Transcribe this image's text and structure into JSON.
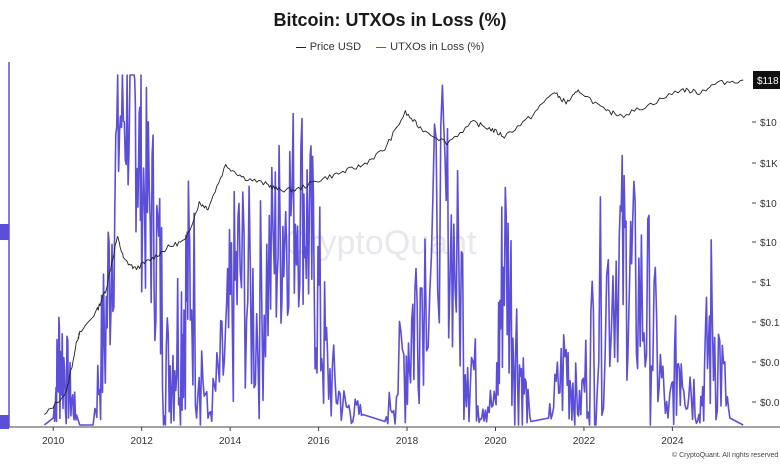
{
  "chart_data": {
    "type": "line",
    "title": "Bitcoin: UTXOs in Loss (%)",
    "legend": [
      "Price USD",
      "UTXOs in Loss (%)"
    ],
    "x_ticks": [
      "2010",
      "2012",
      "2014",
      "2016",
      "2018",
      "2020",
      "2022",
      "2024"
    ],
    "y_right_ticks": [
      "$118",
      "$10",
      "$1K",
      "$10",
      "$10",
      "$1",
      "$0.1",
      "$0.0",
      "$0.0"
    ],
    "y_scale": "log",
    "series": [
      {
        "name": "Price USD",
        "color": "#222222",
        "x": [
          2009.8,
          2010.3,
          2010.55,
          2010.6,
          2011.0,
          2011.2,
          2011.45,
          2011.6,
          2011.85,
          2012.2,
          2012.6,
          2013.0,
          2013.3,
          2013.5,
          2013.9,
          2014.3,
          2014.8,
          2015.1,
          2015.5,
          2016.0,
          2016.5,
          2017.0,
          2017.5,
          2017.96,
          2018.3,
          2018.9,
          2019.5,
          2019.9,
          2020.2,
          2020.8,
          2021.3,
          2021.6,
          2021.9,
          2022.5,
          2022.9,
          2023.5,
          2024.2,
          2024.6,
          2025.0,
          2025.6
        ],
        "values": [
          0.0008,
          0.003,
          0.06,
          0.08,
          0.3,
          1,
          18,
          5,
          3,
          5,
          10,
          15,
          120,
          90,
          1000,
          500,
          350,
          250,
          250,
          430,
          650,
          1000,
          2500,
          19000,
          8000,
          3500,
          11000,
          7500,
          5000,
          15000,
          60000,
          33000,
          65000,
          20000,
          16500,
          30000,
          70000,
          58000,
          98000,
          118000
        ]
      },
      {
        "name": "UTXOs in Loss (%)",
        "color": "#5b4fd9",
        "x": [
          2009.8,
          2010.0,
          2010.15,
          2010.4,
          2010.6,
          2010.9,
          2011.2,
          2011.5,
          2011.8,
          2012.0,
          2012.3,
          2012.6,
          2012.9,
          2013.1,
          2013.5,
          2013.9,
          2014.2,
          2014.6,
          2015.0,
          2015.3,
          2015.65,
          2015.9,
          2016.2,
          2016.6,
          2017.0,
          2017.5,
          2017.96,
          2018.3,
          2018.8,
          2019.2,
          2019.6,
          2020.0,
          2020.2,
          2020.5,
          2020.8,
          2021.2,
          2021.6,
          2021.9,
          2022.3,
          2022.8,
          2023.1,
          2023.5,
          2023.9,
          2024.2,
          2024.6,
          2024.9,
          2025.3,
          2025.6
        ],
        "values": [
          0,
          2,
          22,
          8,
          0,
          0,
          30,
          88,
          95,
          70,
          55,
          15,
          30,
          45,
          2,
          20,
          45,
          30,
          50,
          62,
          65,
          45,
          15,
          5,
          3,
          1,
          20,
          40,
          65,
          40,
          8,
          5,
          52,
          20,
          1,
          2,
          18,
          5,
          30,
          50,
          40,
          30,
          2,
          25,
          3,
          30,
          2,
          0
        ]
      }
    ]
  },
  "footer": {
    "copyright": "© CryptoQuant. All rights reserved"
  },
  "watermark": "CryptoQuant"
}
